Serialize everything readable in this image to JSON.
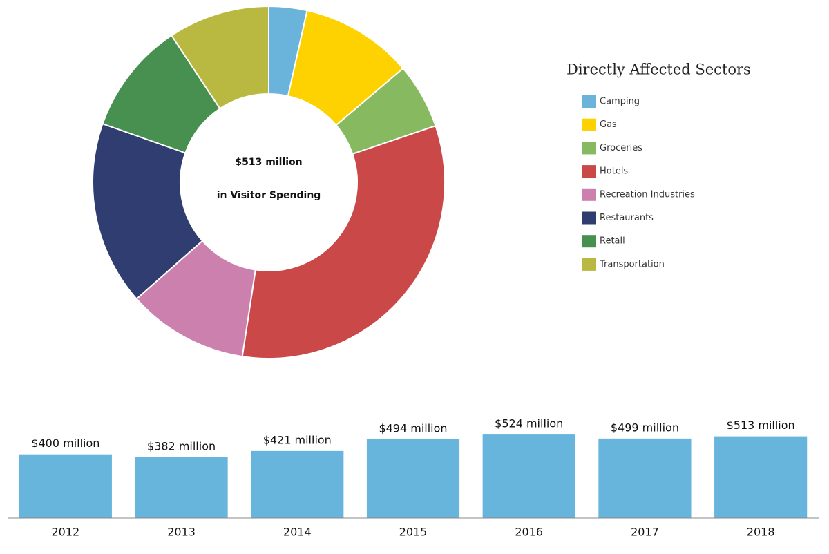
{
  "chart_data": [
    {
      "type": "pie",
      "legend_title": "Directly Affected Sectors",
      "center_text": [
        "$513 million",
        "in Visitor Spending"
      ],
      "categories": [
        "Camping",
        "Gas",
        "Groceries",
        "Hotels",
        "Recreation Industries",
        "Restaurants",
        "Retail",
        "Transportation"
      ],
      "values": [
        3.5,
        10.3,
        6,
        32.6,
        11.1,
        16.9,
        10.3,
        9.3
      ],
      "colors": [
        "#6ab4dc",
        "#fdd200",
        "#86b960",
        "#cb4849",
        "#cc80ae",
        "#2f3d70",
        "#47904f",
        "#b9b941"
      ]
    },
    {
      "type": "bar",
      "categories": [
        "2012",
        "2013",
        "2014",
        "2015",
        "2016",
        "2017",
        "2018"
      ],
      "values": [
        400,
        382,
        421,
        494,
        524,
        499,
        513
      ],
      "value_labels": [
        "$400 million",
        "$382 million",
        "$421 million",
        "$494 million",
        "$524 million",
        "$499 million",
        "$513 million"
      ],
      "color": "#67b5dc",
      "ylim": [
        0,
        650
      ]
    }
  ]
}
